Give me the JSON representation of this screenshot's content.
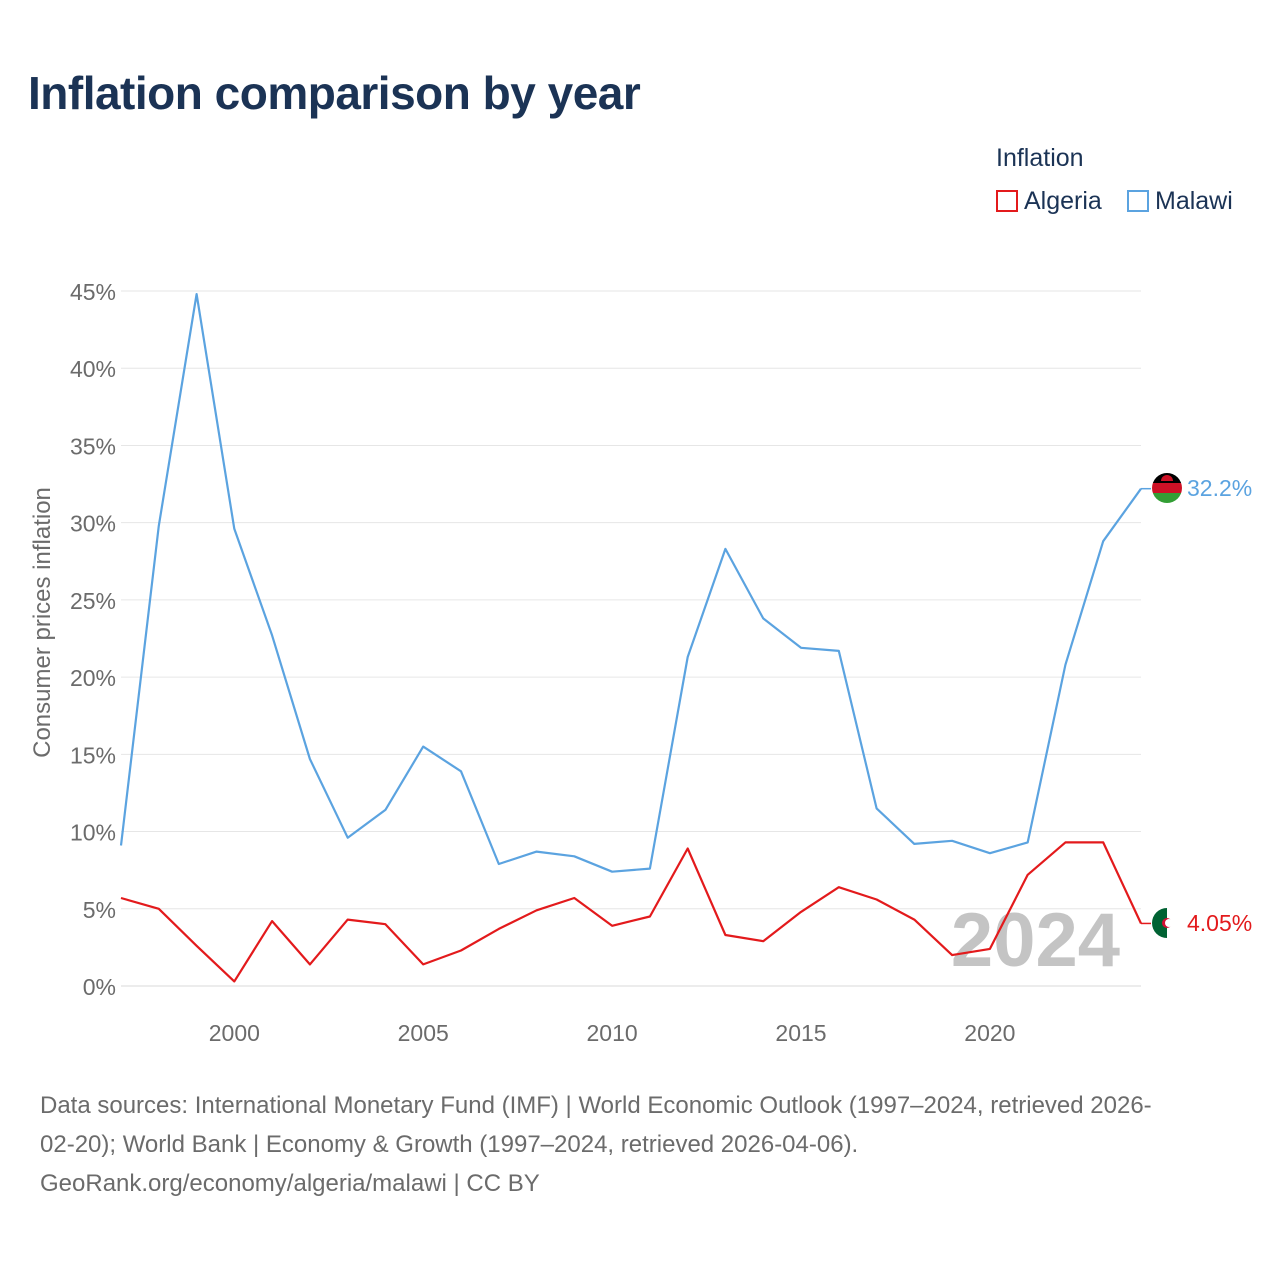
{
  "chart_data": {
    "type": "line",
    "title": "Inflation comparison by year",
    "legend_title": "Inflation",
    "legend_position": "top-right",
    "ylabel": "Consumer prices inflation",
    "xlabel": "",
    "ylim": [
      0,
      45
    ],
    "xlim": [
      1997,
      2024
    ],
    "y_ticks": [
      0,
      5,
      10,
      15,
      20,
      25,
      30,
      35,
      40,
      45
    ],
    "y_tick_labels": [
      "0%",
      "5%",
      "10%",
      "15%",
      "20%",
      "25%",
      "30%",
      "35%",
      "40%",
      "45%"
    ],
    "x_ticks": [
      2000,
      2005,
      2010,
      2015,
      2020
    ],
    "x_tick_labels": [
      "2000",
      "2005",
      "2010",
      "2015",
      "2020"
    ],
    "grid": true,
    "year_watermark": "2024",
    "x": [
      1997,
      1998,
      1999,
      2000,
      2001,
      2002,
      2003,
      2004,
      2005,
      2006,
      2007,
      2008,
      2009,
      2010,
      2011,
      2012,
      2013,
      2014,
      2015,
      2016,
      2017,
      2018,
      2019,
      2020,
      2021,
      2022,
      2023,
      2024
    ],
    "series": [
      {
        "name": "Algeria",
        "color": "#e31a1c",
        "end_label": "4.05%",
        "values": [
          5.7,
          5.0,
          2.6,
          0.3,
          4.2,
          1.4,
          4.3,
          4.0,
          1.4,
          2.3,
          3.7,
          4.9,
          5.7,
          3.9,
          4.5,
          8.9,
          3.3,
          2.9,
          4.8,
          6.4,
          5.6,
          4.3,
          2.0,
          2.4,
          7.2,
          9.3,
          9.3,
          4.05
        ]
      },
      {
        "name": "Malawi",
        "color": "#5ba3e0",
        "end_label": "32.2%",
        "values": [
          9.1,
          29.8,
          44.8,
          29.6,
          22.7,
          14.7,
          9.6,
          11.4,
          15.5,
          13.9,
          7.9,
          8.7,
          8.4,
          7.4,
          7.6,
          21.3,
          28.3,
          23.8,
          21.9,
          21.7,
          11.5,
          9.2,
          9.4,
          8.6,
          9.3,
          20.8,
          28.8,
          32.2
        ]
      }
    ]
  },
  "footer": {
    "line1": "Data sources: International Monetary Fund (IMF) | World Economic Outlook (1997–2024, retrieved 2026-",
    "line2": "02-20); World Bank | Economy & Growth (1997–2024, retrieved 2026-04-06).",
    "line3": "GeoRank.org/economy/algeria/malawi | CC BY"
  },
  "colors": {
    "title": "#1b3355",
    "axis_text": "#6b6b6b",
    "grid": "#e6e6e6",
    "watermark": "#c4c4c4"
  }
}
